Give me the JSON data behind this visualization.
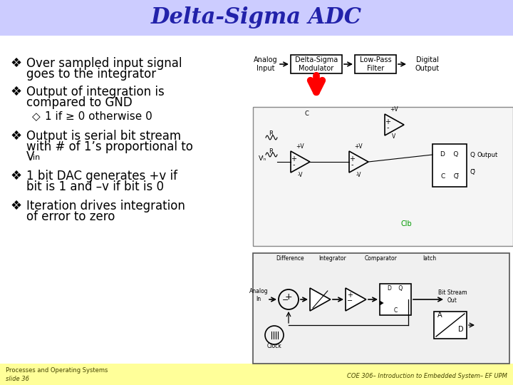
{
  "title": "Delta-Sigma ADC",
  "title_color": "#2222AA",
  "title_bg_color": "#CCCCFF",
  "slide_bg_color": "#FFFFFF",
  "footer_bg_color": "#FFFF99",
  "bullet_symbol": "❖",
  "sub_bullet_symbol": "◇",
  "footer_left_line1": "Processes and Operating Systems",
  "footer_left_line2": "slide 36",
  "footer_right": "COE 306– Introduction to Embedded System– EF UPM",
  "bullet_font": "Comic Sans MS",
  "title_font": "Comic Sans MS"
}
